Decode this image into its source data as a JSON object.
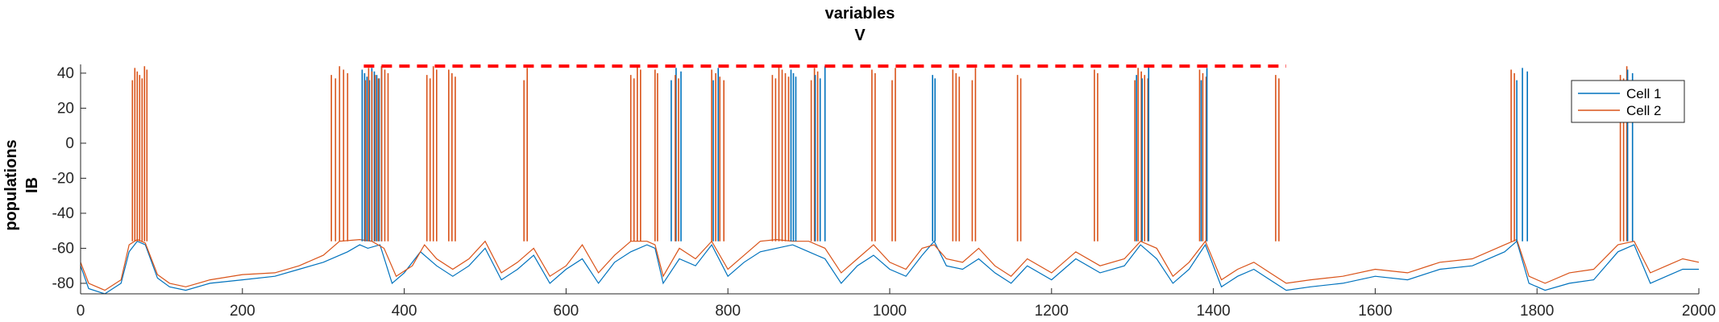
{
  "chart_data": {
    "type": "line",
    "title": [
      "variables",
      "V"
    ],
    "ylabel": [
      "populations",
      "IB"
    ],
    "xlabel": "",
    "xlim": [
      0,
      2000
    ],
    "ylim": [
      -86,
      45
    ],
    "xticks": [
      0,
      200,
      400,
      600,
      800,
      1000,
      1200,
      1400,
      1600,
      1800,
      2000
    ],
    "yticks": [
      -80,
      -60,
      -40,
      -20,
      0,
      20,
      40
    ],
    "grid": false,
    "legend_position": "top-right",
    "series": [
      {
        "name": "Cell 1",
        "color": "#0072bd",
        "x": [
          0,
          10,
          30,
          50,
          60,
          70,
          80,
          95,
          110,
          130,
          160,
          200,
          240,
          270,
          300,
          330,
          345,
          355,
          370,
          385,
          400,
          420,
          440,
          460,
          480,
          500,
          520,
          540,
          560,
          580,
          600,
          620,
          640,
          660,
          680,
          700,
          710,
          720,
          740,
          760,
          780,
          800,
          820,
          840,
          860,
          880,
          900,
          920,
          940,
          960,
          980,
          1000,
          1020,
          1040,
          1055,
          1070,
          1090,
          1110,
          1130,
          1150,
          1170,
          1200,
          1230,
          1260,
          1290,
          1310,
          1330,
          1350,
          1370,
          1390,
          1410,
          1430,
          1450,
          1470,
          1490,
          1520,
          1560,
          1600,
          1640,
          1680,
          1720,
          1760,
          1775,
          1790,
          1810,
          1840,
          1870,
          1900,
          1920,
          1940,
          1960,
          1980,
          2000
        ],
        "values": [
          -70,
          -83,
          -86,
          -80,
          -62,
          -56,
          -58,
          -77,
          -82,
          -84,
          -80,
          -78,
          -76,
          -72,
          -68,
          -62,
          -58,
          -60,
          -58,
          -80,
          -74,
          -62,
          -70,
          -76,
          -70,
          -60,
          -78,
          -72,
          -64,
          -80,
          -72,
          -66,
          -80,
          -68,
          -62,
          -58,
          -60,
          -80,
          -66,
          -70,
          -58,
          -76,
          -68,
          -62,
          -60,
          -58,
          -62,
          -66,
          -80,
          -70,
          -64,
          -72,
          -76,
          -64,
          -56,
          -70,
          -72,
          -66,
          -74,
          -80,
          -70,
          -78,
          -66,
          -74,
          -70,
          -58,
          -66,
          -80,
          -72,
          -58,
          -82,
          -76,
          -72,
          -78,
          -84,
          -82,
          -80,
          -76,
          -78,
          -72,
          -70,
          -62,
          -56,
          -80,
          -84,
          -80,
          -78,
          -62,
          -58,
          -80,
          -76,
          -72,
          -72
        ]
      },
      {
        "name": "Cell 2",
        "color": "#d95319",
        "x": [
          0,
          10,
          30,
          50,
          60,
          70,
          80,
          95,
          110,
          130,
          160,
          200,
          240,
          270,
          300,
          320,
          345,
          360,
          375,
          390,
          410,
          425,
          440,
          460,
          480,
          500,
          520,
          540,
          560,
          580,
          600,
          620,
          640,
          660,
          680,
          700,
          710,
          720,
          740,
          760,
          780,
          800,
          820,
          840,
          860,
          880,
          900,
          920,
          940,
          960,
          980,
          1000,
          1020,
          1040,
          1055,
          1070,
          1090,
          1110,
          1130,
          1150,
          1170,
          1200,
          1230,
          1260,
          1290,
          1310,
          1330,
          1350,
          1370,
          1390,
          1410,
          1430,
          1450,
          1470,
          1490,
          1520,
          1560,
          1600,
          1640,
          1680,
          1720,
          1760,
          1775,
          1790,
          1810,
          1840,
          1870,
          1900,
          1920,
          1940,
          1960,
          1980,
          2000
        ],
        "values": [
          -68,
          -80,
          -84,
          -78,
          -58,
          -55,
          -57,
          -75,
          -80,
          -82,
          -78,
          -75,
          -74,
          -70,
          -64,
          -56,
          -55,
          -56,
          -60,
          -76,
          -70,
          -58,
          -66,
          -72,
          -66,
          -56,
          -74,
          -68,
          -60,
          -76,
          -70,
          -58,
          -74,
          -64,
          -56,
          -56,
          -58,
          -76,
          -60,
          -66,
          -56,
          -72,
          -64,
          -56,
          -55,
          -56,
          -56,
          -60,
          -74,
          -66,
          -58,
          -68,
          -72,
          -60,
          -58,
          -66,
          -68,
          -60,
          -70,
          -76,
          -66,
          -74,
          -62,
          -70,
          -66,
          -56,
          -60,
          -76,
          -68,
          -56,
          -78,
          -72,
          -68,
          -74,
          -80,
          -78,
          -76,
          -72,
          -74,
          -68,
          -66,
          -58,
          -55,
          -76,
          -80,
          -74,
          -72,
          -58,
          -56,
          -74,
          -70,
          -66,
          -68
        ]
      }
    ],
    "spike_bursts": [
      {
        "series": "Cell 2",
        "times": [
          64,
          67,
          70,
          73,
          76,
          79,
          82
        ]
      },
      {
        "series": "Cell 2",
        "times": [
          310,
          315,
          320,
          325,
          330
        ]
      },
      {
        "series": "Cell 1",
        "times": [
          348,
          351,
          354,
          357,
          360,
          363,
          366,
          369,
          372
        ]
      },
      {
        "series": "Cell 2",
        "times": [
          352,
          356,
          360,
          364,
          368,
          372,
          376,
          380
        ]
      },
      {
        "series": "Cell 2",
        "times": [
          428,
          432,
          436,
          440
        ]
      },
      {
        "series": "Cell 2",
        "times": [
          455,
          459,
          463
        ]
      },
      {
        "series": "Cell 2",
        "times": [
          548,
          552
        ]
      },
      {
        "series": "Cell 2",
        "times": [
          680,
          684,
          688,
          692
        ]
      },
      {
        "series": "Cell 2",
        "times": [
          710,
          713
        ]
      },
      {
        "series": "Cell 1",
        "times": [
          730,
          736,
          742
        ]
      },
      {
        "series": "Cell 2",
        "times": [
          735,
          739
        ]
      },
      {
        "series": "Cell 2",
        "times": [
          780,
          785,
          790,
          795
        ]
      },
      {
        "series": "Cell 1",
        "times": [
          782,
          788
        ]
      },
      {
        "series": "Cell 2",
        "times": [
          855,
          859,
          863,
          867,
          871,
          875
        ]
      },
      {
        "series": "Cell 1",
        "times": [
          878,
          881,
          884
        ]
      },
      {
        "series": "Cell 2",
        "times": [
          903,
          907,
          911
        ]
      },
      {
        "series": "Cell 1",
        "times": [
          908,
          914,
          920
        ]
      },
      {
        "series": "Cell 2",
        "times": [
          978,
          982
        ]
      },
      {
        "series": "Cell 2",
        "times": [
          1003,
          1007
        ]
      },
      {
        "series": "Cell 1",
        "times": [
          1053,
          1056
        ]
      },
      {
        "series": "Cell 2",
        "times": [
          1078,
          1082,
          1086
        ]
      },
      {
        "series": "Cell 2",
        "times": [
          1102,
          1106
        ]
      },
      {
        "series": "Cell 2",
        "times": [
          1158,
          1162
        ]
      },
      {
        "series": "Cell 2",
        "times": [
          1253,
          1257
        ]
      },
      {
        "series": "Cell 2",
        "times": [
          1303,
          1307,
          1311,
          1315,
          1319
        ]
      },
      {
        "series": "Cell 1",
        "times": [
          1305,
          1312,
          1320
        ]
      },
      {
        "series": "Cell 2",
        "times": [
          1383,
          1387,
          1391
        ]
      },
      {
        "series": "Cell 1",
        "times": [
          1385,
          1392
        ]
      },
      {
        "series": "Cell 2",
        "times": [
          1477,
          1481
        ]
      },
      {
        "series": "Cell 2",
        "times": [
          1768,
          1772
        ]
      },
      {
        "series": "Cell 1",
        "times": [
          1775,
          1782,
          1788
        ]
      },
      {
        "series": "Cell 2",
        "times": [
          1903,
          1907,
          1911
        ]
      },
      {
        "series": "Cell 1",
        "times": [
          1912,
          1918
        ]
      }
    ],
    "annotations": [
      {
        "type": "dashed-line",
        "color": "#ff0000",
        "x": [
          350,
          1490
        ],
        "y": 44
      }
    ]
  }
}
